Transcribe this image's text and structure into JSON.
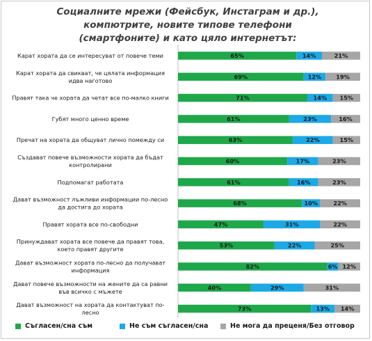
{
  "chart_data": {
    "type": "bar",
    "stacked": true,
    "horizontal": true,
    "title": "Социалните мрежи (Фейсбук, Инстаграм и др.),\nкомпютрите, новите типове телефони\n(смартфоните) и като цяло интернетът:",
    "categories": [
      [
        "Карат хората да се интересуват от повече теми"
      ],
      [
        "Карат хората да свикват, че цялата информация",
        "идва наготово"
      ],
      [
        "Правят така че хората да четат все по-малко книги"
      ],
      [
        "Губят много ценно време"
      ],
      [
        "Пречат на хората да общуват лично помежду си"
      ],
      [
        "Създават повече възможности хората да бъдат",
        "контролирани"
      ],
      [
        "Подпомагат работата"
      ],
      [
        "Дават възможност лъжливи информации по-лесно",
        "да достига до хората"
      ],
      [
        "Правят хората все по-свободни"
      ],
      [
        "Принуждават хората все повече да правят това,",
        "което правят другите"
      ],
      [
        "Дават възможност хората по-лесно да получават",
        "информация"
      ],
      [
        "Дават повече възможности на жените да са равни",
        "във всичко с мъжете"
      ],
      [
        "Дават възможност на хората да контактуват по-",
        "лесно"
      ]
    ],
    "series": [
      {
        "name": "Съгласен/сна съм",
        "color": "#1fa84a",
        "values": [
          65,
          69,
          71,
          61,
          63,
          60,
          61,
          68,
          47,
          53,
          82,
          40,
          73
        ]
      },
      {
        "name": "Не съм съгласен/сна",
        "color": "#1ca9e6",
        "values": [
          14,
          12,
          14,
          23,
          22,
          17,
          16,
          10,
          31,
          22,
          6,
          29,
          13
        ]
      },
      {
        "name": "Не мога да преценя/Без отговор",
        "color": "#a6a6a6",
        "values": [
          21,
          19,
          15,
          16,
          15,
          23,
          23,
          22,
          22,
          25,
          12,
          31,
          14
        ]
      }
    ],
    "value_suffix": "%",
    "xlim": [
      0,
      100
    ],
    "legend_position": "bottom",
    "grid": false
  }
}
